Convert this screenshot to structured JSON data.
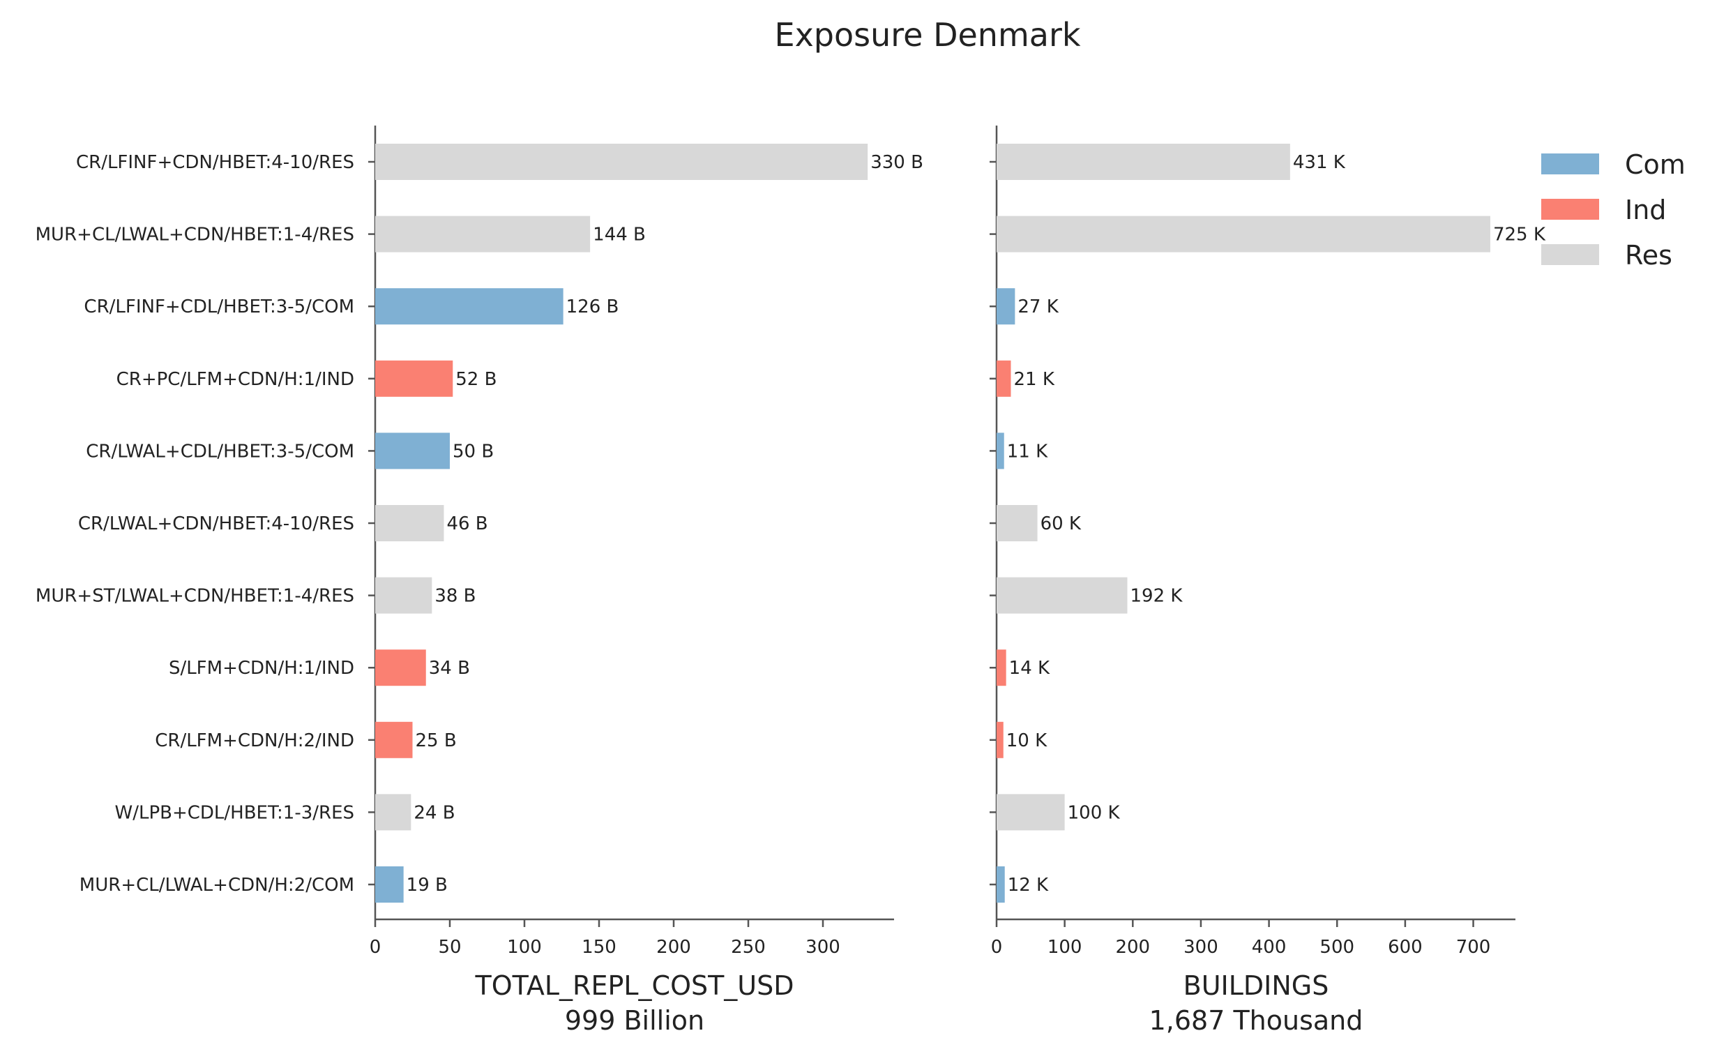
{
  "chart_data": {
    "title": "Exposure Denmark",
    "type": "bar",
    "orientation": "horizontal",
    "categories": [
      "CR/LFINF+CDN/HBET:4-10/RES",
      "MUR+CL/LWAL+CDN/HBET:1-4/RES",
      "CR/LFINF+CDL/HBET:3-5/COM",
      "CR+PC/LFM+CDN/H:1/IND",
      "CR/LWAL+CDL/HBET:3-5/COM",
      "CR/LWAL+CDN/HBET:4-10/RES",
      "MUR+ST/LWAL+CDN/HBET:1-4/RES",
      "S/LFM+CDN/H:1/IND",
      "CR/LFM+CDN/H:2/IND",
      "W/LPB+CDL/HBET:1-3/RES",
      "MUR+CL/LWAL+CDN/H:2/COM"
    ],
    "occupancy": [
      "Res",
      "Res",
      "Com",
      "Ind",
      "Com",
      "Res",
      "Res",
      "Ind",
      "Ind",
      "Res",
      "Com"
    ],
    "legend": {
      "position": "top-right",
      "entries": [
        {
          "name": "Com",
          "color": "#7fb0d3"
        },
        {
          "name": "Ind",
          "color": "#fa8072"
        },
        {
          "name": "Res",
          "color": "#d8d8d8"
        }
      ]
    },
    "panels": [
      {
        "xlabel": "TOTAL_REPL_COST_USD",
        "subtitle": "999 Billion",
        "values": [
          330,
          144,
          126,
          52,
          50,
          46,
          38,
          34,
          25,
          24,
          19
        ],
        "labels": [
          "330 B",
          "144 B",
          "126 B",
          "52 B",
          "50 B",
          "46 B",
          "38 B",
          "34 B",
          "25 B",
          "24 B",
          "19 B"
        ],
        "xticks": [
          "0",
          "50",
          "100",
          "150",
          "200",
          "250",
          "300"
        ],
        "xlim": [
          0,
          347
        ]
      },
      {
        "xlabel": "BUILDINGS",
        "subtitle": "1,687 Thousand",
        "values": [
          431,
          725,
          27,
          21,
          11,
          60,
          192,
          14,
          10,
          100,
          12
        ],
        "labels": [
          "431 K",
          "725 K",
          "27 K",
          "21 K",
          "11 K",
          "60 K",
          "192 K",
          "14 K",
          "10 K",
          "100 K",
          "12 K"
        ],
        "xticks": [
          "0",
          "100",
          "200",
          "300",
          "400",
          "500",
          "600",
          "700"
        ],
        "xlim": [
          0,
          761
        ]
      }
    ],
    "grid": false
  }
}
